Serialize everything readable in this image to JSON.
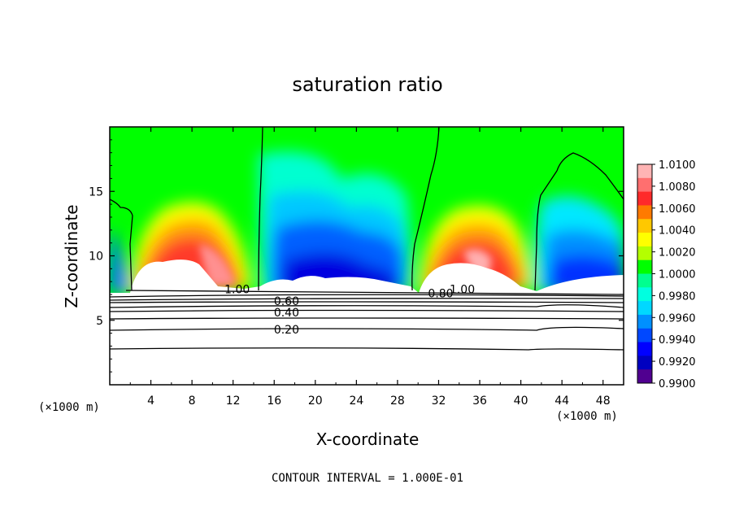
{
  "chart_data": {
    "type": "heatmap",
    "title": "saturation ratio",
    "xlabel": "X-coordinate",
    "ylabel": "Z-coordinate",
    "x_unit_left": "(×1000 m)",
    "x_unit_right": "(×1000 m)",
    "xlim": [
      0,
      50
    ],
    "ylim": [
      0,
      20
    ],
    "x_ticks": [
      "4",
      "8",
      "12",
      "16",
      "20",
      "24",
      "28",
      "32",
      "36",
      "40",
      "44",
      "48"
    ],
    "x_tick_values": [
      4,
      8,
      12,
      16,
      20,
      24,
      28,
      32,
      36,
      40,
      44,
      48
    ],
    "y_ticks": [
      "5",
      "10",
      "15"
    ],
    "y_tick_values": [
      5,
      10,
      15
    ],
    "colorbar": {
      "labels": [
        "1.0100",
        "1.0080",
        "1.0060",
        "1.0040",
        "1.0020",
        "1.0000",
        "0.9980",
        "0.9960",
        "0.9940",
        "0.9920",
        "0.9900"
      ],
      "colors": [
        "#ffb4b4",
        "#ff6f6f",
        "#ff2a2a",
        "#ff7a00",
        "#ffc800",
        "#ffff00",
        "#b4ff00",
        "#00ff00",
        "#00ff90",
        "#00ffe0",
        "#00d8ff",
        "#0090ff",
        "#0048ff",
        "#0000ff",
        "#0000c0",
        "#500090"
      ]
    },
    "contour_labels": [
      {
        "text": "1.00",
        "x": 12.4,
        "y": 7.4
      },
      {
        "text": "0.60",
        "x": 17.2,
        "y": 6.5
      },
      {
        "text": "0.40",
        "x": 17.2,
        "y": 5.6
      },
      {
        "text": "0.20",
        "x": 17.2,
        "y": 4.3
      },
      {
        "text": "0.80",
        "x": 32.2,
        "y": 7.1
      },
      {
        "text": "1.00",
        "x": 34.3,
        "y": 7.4
      }
    ],
    "footer": "CONTOUR INTERVAL = 1.000E-01"
  }
}
